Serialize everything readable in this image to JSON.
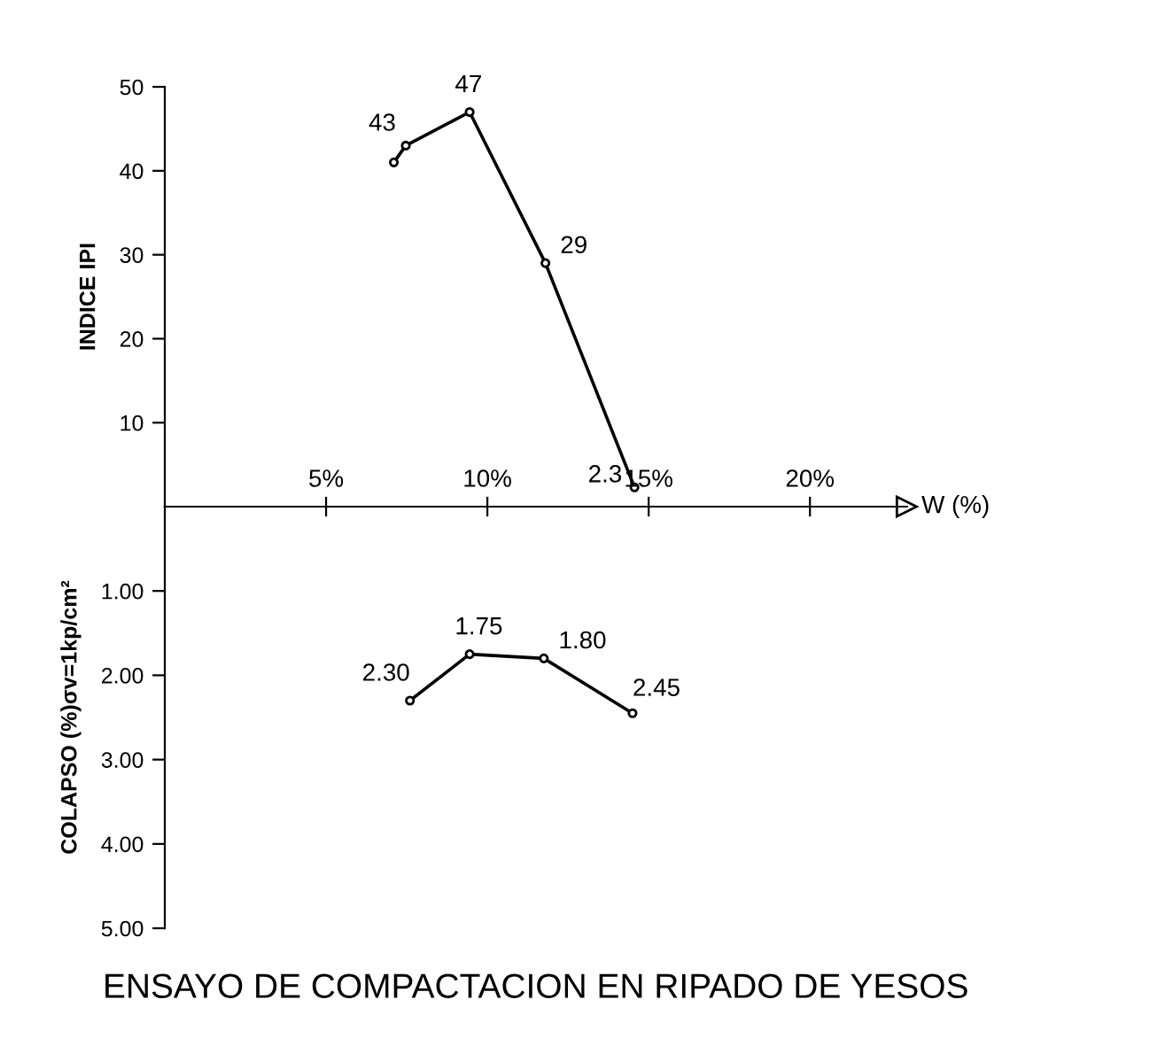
{
  "chart_data": [
    {
      "type": "line",
      "ylabel": "INDICE IPI",
      "x": [
        7.1,
        7.47,
        9.45,
        11.8,
        14.56
      ],
      "values": [
        41,
        43,
        47,
        29,
        2.3
      ],
      "value_labels": [
        null,
        "43",
        "47",
        "29",
        "2.3"
      ],
      "color": "#000000",
      "marker": "circle",
      "line_style": "solid",
      "xlim": [
        0,
        23
      ],
      "ylim": [
        0,
        50
      ],
      "yticks": [
        {
          "value": 10,
          "label": "10"
        },
        {
          "value": 20,
          "label": "20"
        },
        {
          "value": 30,
          "label": "30"
        },
        {
          "value": 40,
          "label": "40"
        },
        {
          "value": 50,
          "label": "50"
        }
      ],
      "tick_labels": "y",
      "grid": false,
      "legend": false
    },
    {
      "type": "line",
      "title": "ENSAYO DE COMPACTACION EN RIPADO DE YESOS",
      "xlabel": "W (%)",
      "ylabel": "COLAPSO (%)σv=1kp/cm²",
      "x": [
        7.6,
        9.45,
        11.75,
        14.5
      ],
      "values": [
        2.3,
        1.75,
        1.8,
        2.45
      ],
      "value_labels": [
        "2.30",
        "1.75",
        "1.80",
        "2.45"
      ],
      "color": "#000000",
      "marker": "circle",
      "line_style": "solid",
      "xlim": [
        0,
        23
      ],
      "xticks": [
        {
          "value": 5,
          "label": "5%"
        },
        {
          "value": 10,
          "label": "10%"
        },
        {
          "value": 15,
          "label": "15%"
        },
        {
          "value": 20,
          "label": "20%"
        }
      ],
      "ylim": [
        5,
        0
      ],
      "yticks": [
        {
          "value": 1,
          "label": "1.00"
        },
        {
          "value": 2,
          "label": "2.00"
        },
        {
          "value": 3,
          "label": "3.00"
        },
        {
          "value": 4,
          "label": "4.00"
        },
        {
          "value": 5,
          "label": "5.00"
        }
      ],
      "grid": false,
      "legend": false
    }
  ]
}
